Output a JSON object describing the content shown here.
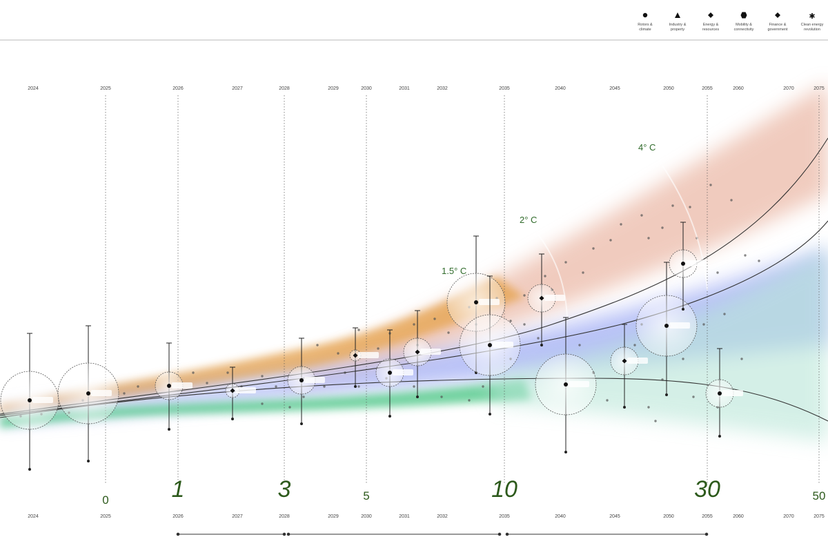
{
  "legend": [
    {
      "icon": "circle-icon",
      "label1": "Rotors &",
      "label2": "climate"
    },
    {
      "icon": "triangle-icon",
      "label1": "Industry &",
      "label2": "property"
    },
    {
      "icon": "diamond-icon",
      "label1": "Energy &",
      "label2": "resources"
    },
    {
      "icon": "hexagon-icon",
      "label1": "Mobility &",
      "label2": "connectivity"
    },
    {
      "icon": "diamond-icon",
      "label1": "Finance &",
      "label2": "government"
    },
    {
      "icon": "asterisk-icon",
      "label1": "Clean energy",
      "label2": "revolution"
    }
  ],
  "colors": {
    "warm": "#e4a28a",
    "orange": "#e6a552",
    "blue": "#7f8ff0",
    "green": "#53c98a",
    "teal": "#b9e6d8",
    "big_number": "#2d5a1c"
  },
  "chart_data": {
    "type": "scatter",
    "years": [
      "2024",
      "2025",
      "2026",
      "2027",
      "2028",
      "2029",
      "2030",
      "2031",
      "2032",
      "2035",
      "2040",
      "2045",
      "2050",
      "2055",
      "2060",
      "2070",
      "2075"
    ],
    "horizon_labels": [
      "0",
      "1",
      "3",
      "5",
      "10",
      "30",
      "50"
    ],
    "temperature_labels": [
      "1.5° C",
      "2° C",
      "4° C"
    ],
    "milestones": [
      {
        "year": 2024,
        "size": "large"
      },
      {
        "year": 2025,
        "size": "large"
      },
      {
        "year": 2026,
        "size": "medium"
      },
      {
        "year": 2027,
        "size": "small"
      },
      {
        "year": 2028,
        "size": "medium"
      },
      {
        "year": 2030,
        "size": "small"
      },
      {
        "year": 2031,
        "size": "medium"
      },
      {
        "year": 2031,
        "size": "medium"
      },
      {
        "year": 2035,
        "size": "large"
      },
      {
        "year": 2035,
        "size": "large"
      },
      {
        "year": 2040,
        "size": "medium"
      },
      {
        "year": 2040,
        "size": "large"
      },
      {
        "year": 2045,
        "size": "medium"
      },
      {
        "year": 2050,
        "size": "large"
      },
      {
        "year": 2050,
        "size": "medium"
      },
      {
        "year": 2055,
        "size": "medium"
      }
    ],
    "grid": "vertical dotted lines at year ticks",
    "legend_position": "top-right"
  }
}
